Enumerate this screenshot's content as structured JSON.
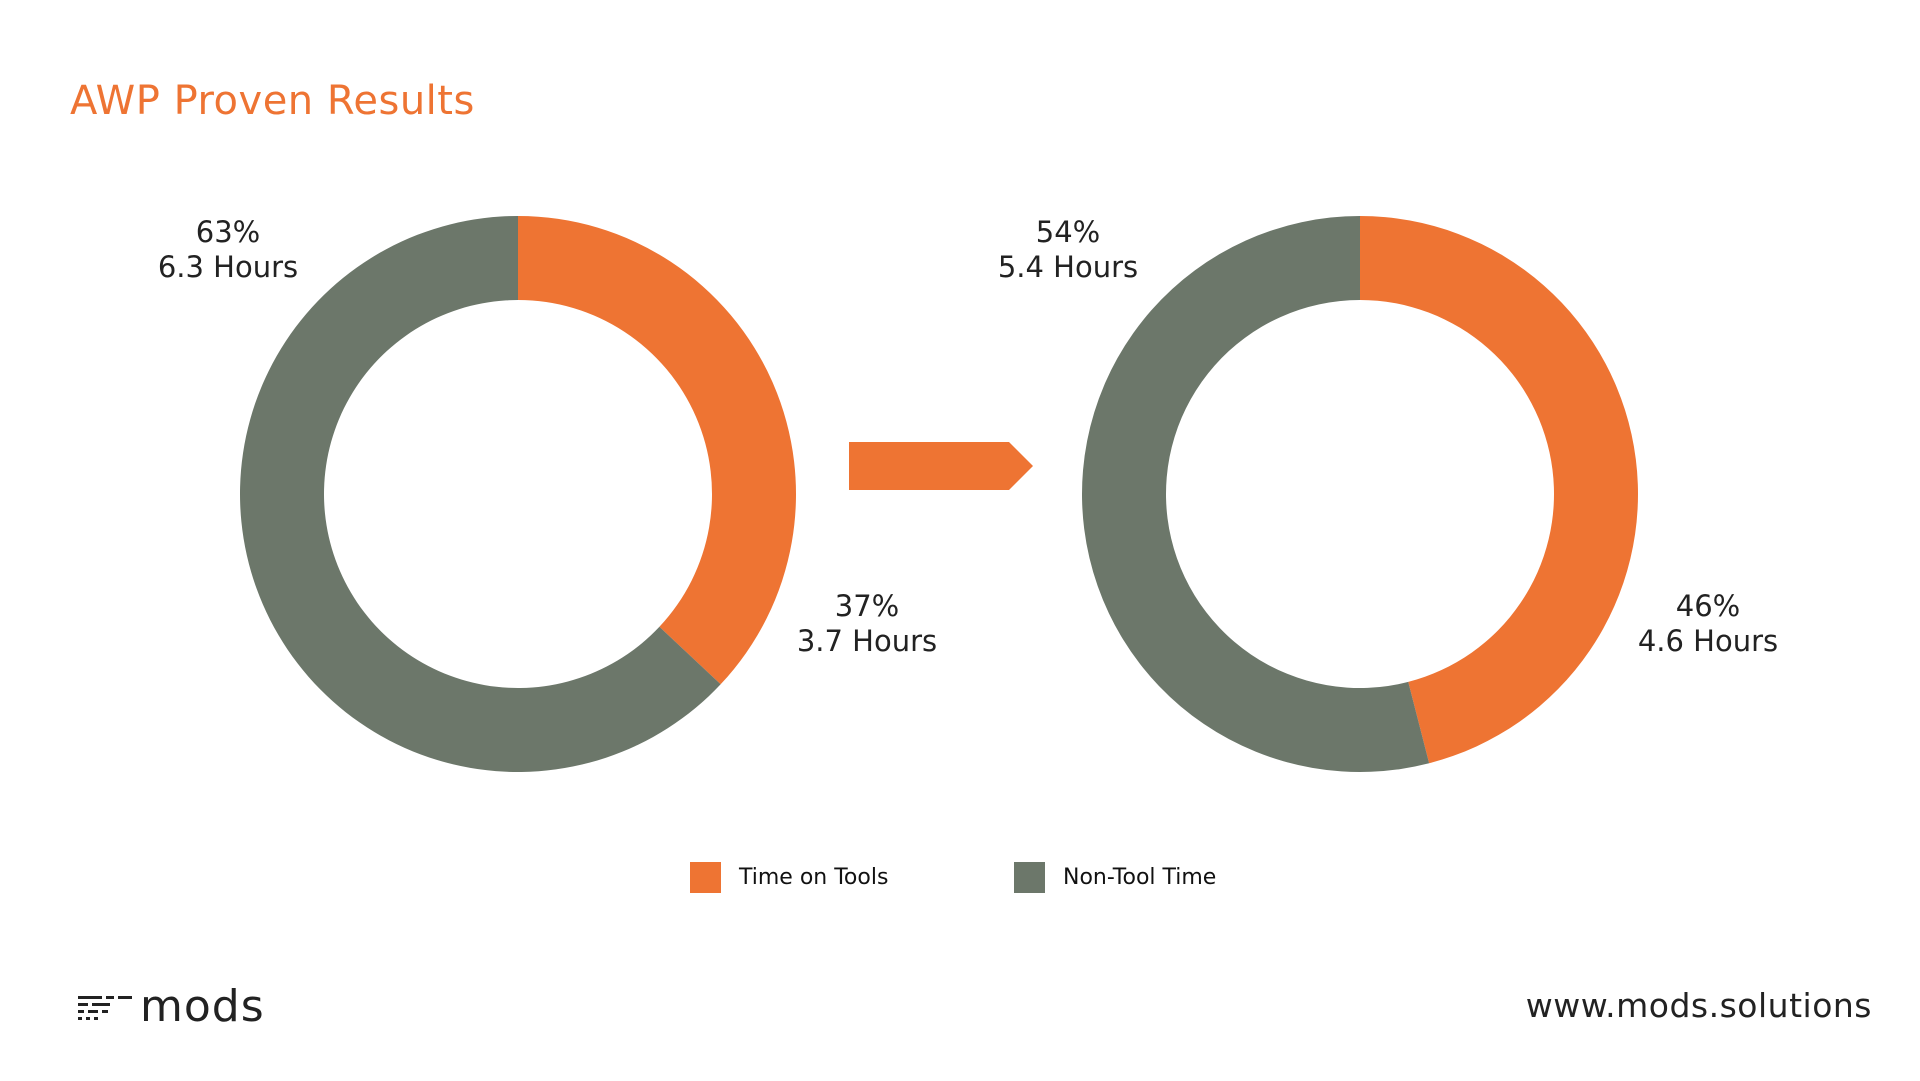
{
  "title": "AWP Proven Results",
  "colors": {
    "tools": "#EE7433",
    "non_tool": "#6C776A",
    "title": "#EE7433"
  },
  "chart_data": [
    {
      "type": "pie",
      "style": "donut",
      "slices": [
        {
          "series": "Time on Tools",
          "value": 37,
          "percent_label": "37%",
          "hours_label": "3.7 Hours"
        },
        {
          "series": "Non-Tool Time",
          "value": 63,
          "percent_label": "63%",
          "hours_label": "6.3 Hours"
        }
      ]
    },
    {
      "type": "pie",
      "style": "donut",
      "slices": [
        {
          "series": "Time on Tools",
          "value": 46,
          "percent_label": "46%",
          "hours_label": "4.6 Hours"
        },
        {
          "series": "Non-Tool Time",
          "value": 54,
          "percent_label": "54%",
          "hours_label": "5.4 Hours"
        }
      ]
    }
  ],
  "legend": [
    {
      "label": "Time on Tools",
      "color": "#EE7433"
    },
    {
      "label": "Non-Tool Time",
      "color": "#6C776A"
    }
  ],
  "logo": {
    "text": "mods"
  },
  "footer": {
    "website": "www.mods.solutions"
  }
}
